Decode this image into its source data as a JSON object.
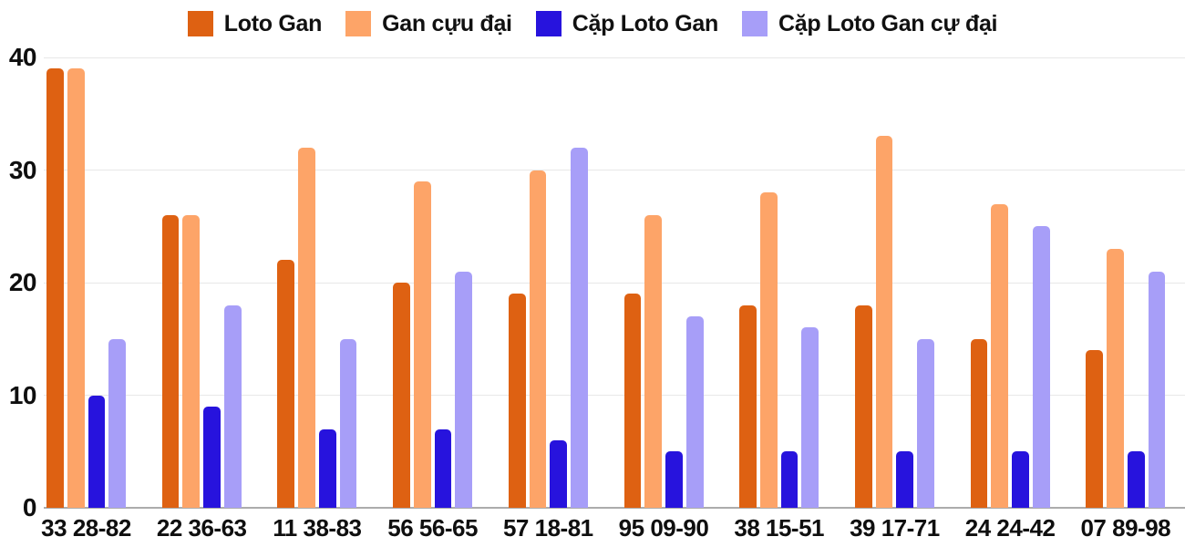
{
  "chart_data": {
    "type": "bar",
    "title": "",
    "xlabel": "",
    "ylabel": "",
    "categories": [
      "33 28-82",
      "22 36-63",
      "11 38-83",
      "56 56-65",
      "57 18-81",
      "95 09-90",
      "38 15-51",
      "39 17-71",
      "24 24-42",
      "07 89-98"
    ],
    "series": [
      {
        "name": "Loto Gan",
        "color": "#DE6112",
        "values": [
          39,
          26,
          22,
          20,
          19,
          19,
          18,
          18,
          15,
          14
        ]
      },
      {
        "name": "Gan cựu đại",
        "color": "#FDA468",
        "values": [
          39,
          26,
          32,
          29,
          30,
          26,
          28,
          33,
          27,
          23
        ]
      },
      {
        "name": "Cặp Loto Gan",
        "color": "#2713DD",
        "values": [
          10,
          9,
          7,
          7,
          6,
          5,
          5,
          5,
          5,
          5
        ]
      },
      {
        "name": "Cặp Loto Gan cự đại",
        "color": "#A79EF8",
        "values": [
          15,
          18,
          15,
          21,
          32,
          17,
          16,
          15,
          25,
          21
        ]
      }
    ],
    "ylim": [
      0,
      40
    ],
    "yticks": [
      0,
      10,
      20,
      30,
      40
    ],
    "grid": true,
    "legend_position": "top",
    "background": "#ffffff",
    "gridline_color": "#e8e8e8",
    "baseline_color": "#acacac",
    "label_color": "#0f0f0f"
  }
}
